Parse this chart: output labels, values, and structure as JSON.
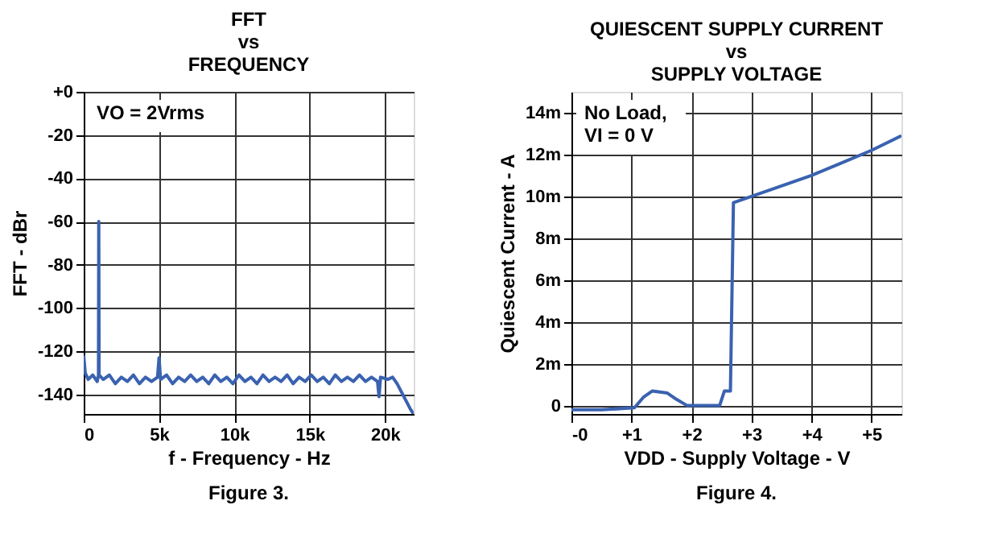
{
  "chart_data": [
    {
      "type": "line",
      "title": "FFT\nvs\nFREQUENCY",
      "xlabel": "f - Frequency - Hz",
      "ylabel": "FFT - dBr",
      "annotations": [
        "VO = 2Vrms",
        "Figure 3."
      ],
      "x": [
        0,
        100,
        300,
        600,
        900,
        980,
        1000,
        1020,
        1300,
        1700,
        2100,
        2500,
        2900,
        3300,
        3700,
        4100,
        4500,
        4900,
        5000,
        5100,
        5500,
        5900,
        6300,
        6700,
        7100,
        7500,
        7900,
        8300,
        8700,
        9100,
        9500,
        9900,
        10300,
        10700,
        11100,
        11500,
        11900,
        12300,
        12700,
        13100,
        13500,
        13900,
        14300,
        14700,
        15100,
        15500,
        15900,
        16300,
        16700,
        17100,
        17500,
        17900,
        18300,
        18700,
        19100,
        19500,
        19600,
        19700,
        20200,
        20500,
        20800,
        21100,
        21400,
        21700,
        21900
      ],
      "series": [
        {
          "color": "#3a62b0",
          "values": [
            -122,
            -130,
            -133,
            -131,
            -134,
            -131,
            -60,
            -131,
            -133,
            -131,
            -135,
            -132,
            -134,
            -131,
            -135,
            -132,
            -134,
            -132,
            -123,
            -133,
            -131,
            -135,
            -132,
            -134,
            -131,
            -134,
            -132,
            -135,
            -131,
            -134,
            -132,
            -135,
            -131,
            -134,
            -132,
            -135,
            -131,
            -134,
            -132,
            -134,
            -131,
            -135,
            -132,
            -134,
            -131,
            -134,
            -132,
            -135,
            -131,
            -134,
            -132,
            -134,
            -131,
            -134,
            -132,
            -134,
            -141,
            -132,
            -133,
            -132,
            -135,
            -139,
            -143,
            -147,
            -149
          ]
        }
      ],
      "xlim": [
        0,
        21900
      ],
      "ylim": [
        -149,
        0
      ],
      "xticks": [
        0,
        {
          "value": 5000,
          "label": "5k"
        },
        {
          "value": 10000,
          "label": "10k"
        },
        {
          "value": 15000,
          "label": "15k"
        },
        {
          "value": 20000,
          "label": "20k"
        }
      ],
      "yticks": [
        {
          "value": 0,
          "label": "+0"
        },
        -20,
        -40,
        -60,
        -80,
        -100,
        -120,
        -140
      ],
      "grid": true,
      "line_style": "solid"
    },
    {
      "type": "line",
      "title": "QUIESCENT SUPPLY CURRENT\nvs\nSUPPLY VOLTAGE",
      "xlabel": "VDD - Supply Voltage - V",
      "ylabel": "Quiescent Current - A",
      "annotations": [
        "No Load,\nVI = 0 V",
        "Figure 4."
      ],
      "x": [
        0,
        0.5,
        1.05,
        1.2,
        1.35,
        1.6,
        1.75,
        1.93,
        2.2,
        2.47,
        2.55,
        2.65,
        2.7,
        3.0,
        3.5,
        4.0,
        4.5,
        5.0,
        5.5
      ],
      "series": [
        {
          "color": "#3a62b0",
          "values": [
            -0.2,
            -0.2,
            -0.1,
            0.4,
            0.7,
            0.6,
            0.3,
            0,
            0,
            0,
            0.7,
            0.7,
            9.7,
            10,
            10.5,
            11,
            11.6,
            12.2,
            12.9
          ]
        }
      ],
      "xlim": [
        0,
        5.5
      ],
      "ylim": [
        -0.4,
        15
      ],
      "xticks": [
        {
          "value": 0,
          "label": "-0"
        },
        {
          "value": 1,
          "label": "+1"
        },
        {
          "value": 2,
          "label": "+2"
        },
        {
          "value": 3,
          "label": "+3"
        },
        {
          "value": 4,
          "label": "+4"
        },
        {
          "value": 5,
          "label": "+5"
        }
      ],
      "yticks": [
        0,
        {
          "value": 2,
          "label": "2m"
        },
        {
          "value": 4,
          "label": "4m"
        },
        {
          "value": 6,
          "label": "6m"
        },
        {
          "value": 8,
          "label": "8m"
        },
        {
          "value": 10,
          "label": "10m"
        },
        {
          "value": 12,
          "label": "12m"
        },
        {
          "value": 14,
          "label": "14m"
        }
      ],
      "grid": true,
      "line_style": "solid"
    }
  ]
}
